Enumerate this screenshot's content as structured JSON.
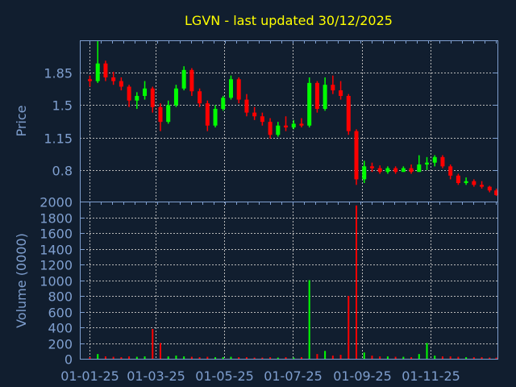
{
  "chart_data": [
    {
      "type": "candlestick",
      "title": "LGVN - last updated 30/12/2025",
      "ylabel": "Price",
      "ylim": [
        0.46,
        2.2
      ],
      "xlim": [
        "2024-12-23",
        "2025-12-31"
      ],
      "yticks": [
        "0.8",
        "1.15",
        "1.5",
        "1.85"
      ],
      "ytick_values": [
        0.8,
        1.15,
        1.5,
        1.85
      ],
      "grid": true,
      "up_color": "#00ff00",
      "down_color": "#ff0000",
      "dates": [
        "2025-01-01",
        "2025-01-08",
        "2025-01-15",
        "2025-01-22",
        "2025-01-29",
        "2025-02-05",
        "2025-02-12",
        "2025-02-19",
        "2025-02-26",
        "2025-03-05",
        "2025-03-12",
        "2025-03-19",
        "2025-03-26",
        "2025-04-02",
        "2025-04-09",
        "2025-04-16",
        "2025-04-23",
        "2025-04-30",
        "2025-05-07",
        "2025-05-14",
        "2025-05-21",
        "2025-05-28",
        "2025-06-04",
        "2025-06-11",
        "2025-06-18",
        "2025-06-25",
        "2025-07-02",
        "2025-07-09",
        "2025-07-16",
        "2025-07-23",
        "2025-07-30",
        "2025-08-06",
        "2025-08-13",
        "2025-08-20",
        "2025-08-27",
        "2025-09-03",
        "2025-09-10",
        "2025-09-17",
        "2025-09-24",
        "2025-10-01",
        "2025-10-08",
        "2025-10-15",
        "2025-10-22",
        "2025-10-29",
        "2025-11-05",
        "2025-11-12",
        "2025-11-19",
        "2025-11-26",
        "2025-12-03",
        "2025-12-10",
        "2025-12-17",
        "2025-12-24",
        "2025-12-30"
      ],
      "open": [
        1.78,
        1.76,
        1.95,
        1.8,
        1.76,
        1.7,
        1.55,
        1.6,
        1.68,
        1.48,
        1.32,
        1.5,
        1.68,
        1.88,
        1.65,
        1.52,
        1.28,
        1.46,
        1.58,
        1.78,
        1.56,
        1.42,
        1.38,
        1.32,
        1.18,
        1.28,
        1.26,
        1.3,
        1.28,
        1.74,
        1.46,
        1.72,
        1.66,
        1.6,
        1.22,
        0.7,
        0.84,
        0.82,
        0.78,
        0.82,
        0.78,
        0.82,
        0.78,
        0.86,
        0.88,
        0.94,
        0.84,
        0.74,
        0.66,
        0.68,
        0.64,
        0.62,
        0.58
      ],
      "high": [
        1.82,
        2.2,
        1.98,
        1.86,
        1.8,
        1.72,
        1.64,
        1.76,
        1.7,
        1.52,
        1.55,
        1.72,
        1.92,
        1.9,
        1.68,
        1.55,
        1.5,
        1.6,
        1.82,
        1.8,
        1.62,
        1.48,
        1.42,
        1.36,
        1.32,
        1.38,
        1.34,
        1.36,
        1.8,
        1.76,
        1.8,
        1.82,
        1.76,
        1.62,
        1.24,
        0.9,
        0.88,
        0.85,
        0.84,
        0.84,
        0.84,
        0.86,
        0.96,
        0.94,
        0.96,
        0.96,
        0.86,
        0.76,
        0.72,
        0.7,
        0.68,
        0.63,
        0.6
      ],
      "low": [
        1.7,
        1.74,
        1.76,
        1.72,
        1.66,
        1.48,
        1.46,
        1.56,
        1.42,
        1.22,
        1.3,
        1.48,
        1.66,
        1.6,
        1.48,
        1.22,
        1.26,
        1.44,
        1.56,
        1.52,
        1.38,
        1.34,
        1.28,
        1.14,
        1.16,
        1.22,
        1.24,
        1.26,
        1.26,
        1.42,
        1.44,
        1.62,
        1.56,
        1.18,
        0.64,
        0.66,
        0.78,
        0.76,
        0.76,
        0.76,
        0.78,
        0.76,
        0.78,
        0.8,
        0.84,
        0.82,
        0.7,
        0.64,
        0.64,
        0.62,
        0.6,
        0.56,
        0.52
      ],
      "close": [
        1.76,
        1.95,
        1.8,
        1.76,
        1.7,
        1.55,
        1.6,
        1.68,
        1.48,
        1.32,
        1.5,
        1.68,
        1.88,
        1.65,
        1.52,
        1.28,
        1.46,
        1.58,
        1.78,
        1.56,
        1.42,
        1.38,
        1.32,
        1.18,
        1.28,
        1.26,
        1.3,
        1.28,
        1.74,
        1.46,
        1.72,
        1.66,
        1.6,
        1.22,
        0.7,
        0.84,
        0.82,
        0.78,
        0.82,
        0.78,
        0.82,
        0.78,
        0.86,
        0.88,
        0.94,
        0.84,
        0.74,
        0.66,
        0.68,
        0.64,
        0.62,
        0.58,
        0.53
      ]
    },
    {
      "type": "bar",
      "ylabel": "Volume (0000)",
      "ylim": [
        0,
        2000
      ],
      "yticks": [
        "0",
        "200",
        "400",
        "600",
        "800",
        "1000",
        "1200",
        "1400",
        "1600",
        "1800",
        "2000"
      ],
      "ytick_values": [
        0,
        200,
        400,
        600,
        800,
        1000,
        1200,
        1400,
        1600,
        1800,
        2000
      ],
      "xticks": [
        "01-01-25",
        "01-03-25",
        "01-05-25",
        "01-07-25",
        "01-09-25",
        "01-11-25"
      ],
      "xtick_dates": [
        "2025-01-01",
        "2025-03-01",
        "2025-05-01",
        "2025-07-01",
        "2025-09-01",
        "2025-11-01"
      ],
      "grid": true,
      "values": [
        20,
        60,
        30,
        25,
        20,
        30,
        25,
        30,
        380,
        200,
        30,
        40,
        30,
        25,
        20,
        25,
        20,
        20,
        25,
        20,
        20,
        15,
        15,
        20,
        15,
        20,
        15,
        20,
        1000,
        60,
        100,
        40,
        50,
        800,
        1950,
        80,
        40,
        30,
        30,
        25,
        25,
        20,
        60,
        200,
        40,
        30,
        30,
        25,
        20,
        20,
        20,
        15,
        15
      ]
    }
  ]
}
